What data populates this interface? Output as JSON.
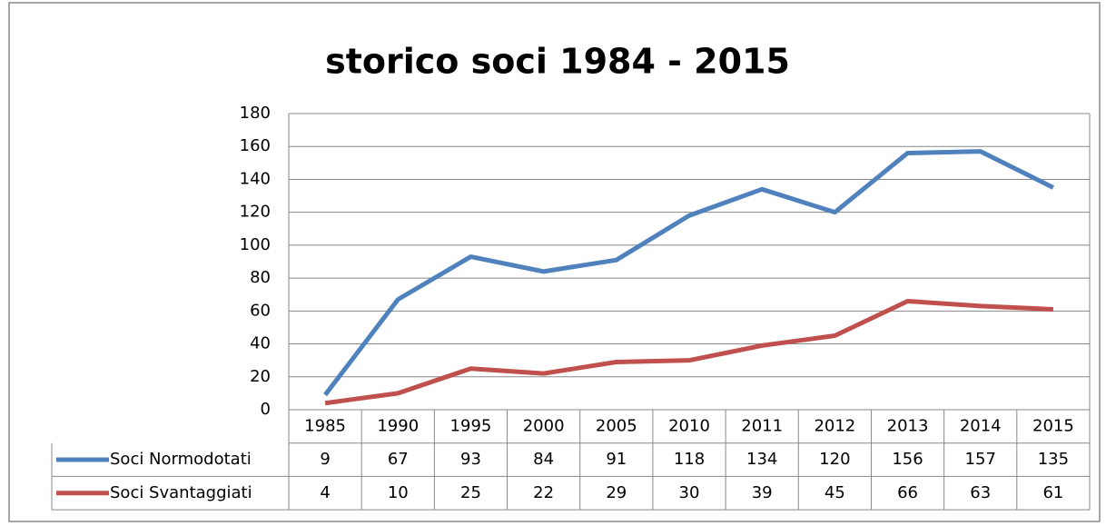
{
  "chart_data": {
    "type": "line",
    "title": "storico soci 1984 - 2015",
    "categories": [
      "1985",
      "1990",
      "1995",
      "2000",
      "2005",
      "2010",
      "2011",
      "2012",
      "2013",
      "2014",
      "2015"
    ],
    "series": [
      {
        "name": "Soci Normodotati",
        "color": "#4f81bd",
        "values": [
          9,
          67,
          93,
          84,
          91,
          118,
          134,
          120,
          156,
          157,
          135
        ]
      },
      {
        "name": "Soci Svantaggiati",
        "color": "#c0504d",
        "values": [
          4,
          10,
          25,
          22,
          29,
          30,
          39,
          45,
          66,
          63,
          61
        ]
      }
    ],
    "ylim": [
      0,
      180
    ],
    "yticks": [
      0,
      20,
      40,
      60,
      80,
      100,
      120,
      140,
      160,
      180
    ],
    "grid": true,
    "data_table": true
  }
}
